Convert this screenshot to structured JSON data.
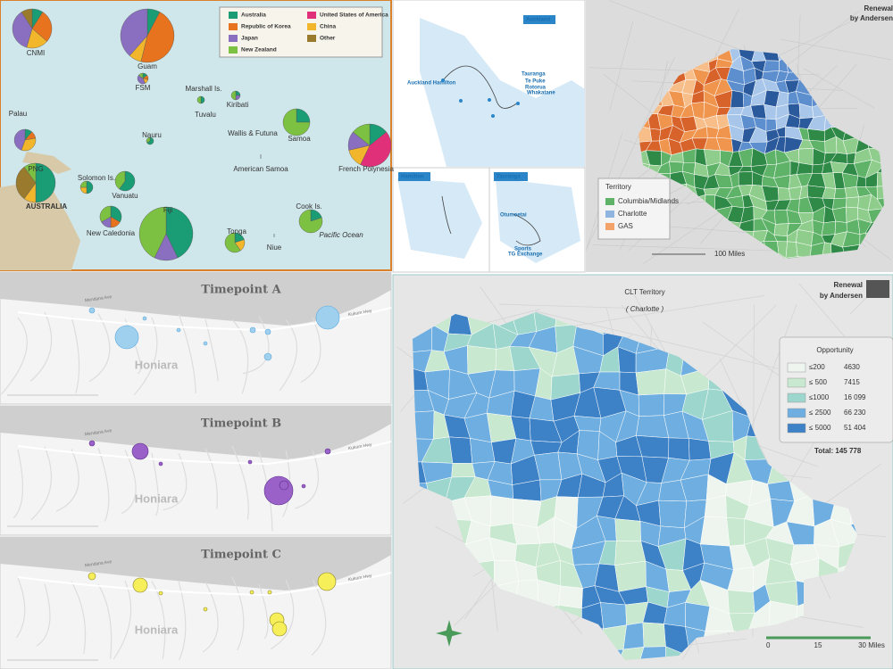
{
  "pacific_map": {
    "legend": [
      "Australia",
      "United States of America",
      "Republic of Korea",
      "China",
      "Japan",
      "Other",
      "New Zealand"
    ],
    "labels": [
      "CNMI",
      "Guam",
      "FSM",
      "Marshall Is.",
      "Kiribati",
      "Palau",
      "Nauru",
      "Tuvalu",
      "Wallis & Futuna",
      "Samoa",
      "French Polynesia",
      "American Samoa",
      "PNG",
      "Solomon Is.",
      "Vanuatu",
      "New Caledonia",
      "Fiji",
      "Tonga",
      "Niue",
      "Cook Is.",
      "AUSTRALIA",
      "Pacific Ocean"
    ]
  },
  "nz_diagram": {
    "boxes": [
      "Auckland",
      "Hamilton",
      "Tauranga"
    ],
    "labels": [
      "Auckland Hamilton",
      "Tauranga",
      "Te Puke",
      "Rotorua",
      "Whakatane",
      "Otumoetai",
      "Sports",
      "TG Exchange"
    ]
  },
  "territory_map": {
    "legend_title": "Territory",
    "legend": [
      "Columbia/Midlands",
      "Charlotte",
      "GAS"
    ],
    "brand": [
      "Renewal",
      "by Andersen"
    ],
    "scale": "100 Miles"
  },
  "honiara": {
    "panels": [
      "Timepoint A",
      "Timepoint B",
      "Timepoint C"
    ],
    "place": "Honiara",
    "streets": [
      "Mendana Ave",
      "Kukum Hwy"
    ]
  },
  "clt_map": {
    "title": "CLT Territory",
    "subtitle": "( Charlotte )",
    "brand": [
      "Renewal",
      "by Andersen"
    ],
    "legend_title": "Opportunity",
    "legend": [
      {
        "range": "≤200",
        "count": "4630"
      },
      {
        "range": "≤ 500",
        "count": "7415"
      },
      {
        "range": "≤1000",
        "count": "16 099"
      },
      {
        "range": "≤ 2500",
        "count": "66 230"
      },
      {
        "range": "≤ 5000",
        "count": "51 404"
      }
    ],
    "total": "Total: 145 778",
    "scale": [
      "0",
      "15",
      "30 Miles"
    ]
  }
}
